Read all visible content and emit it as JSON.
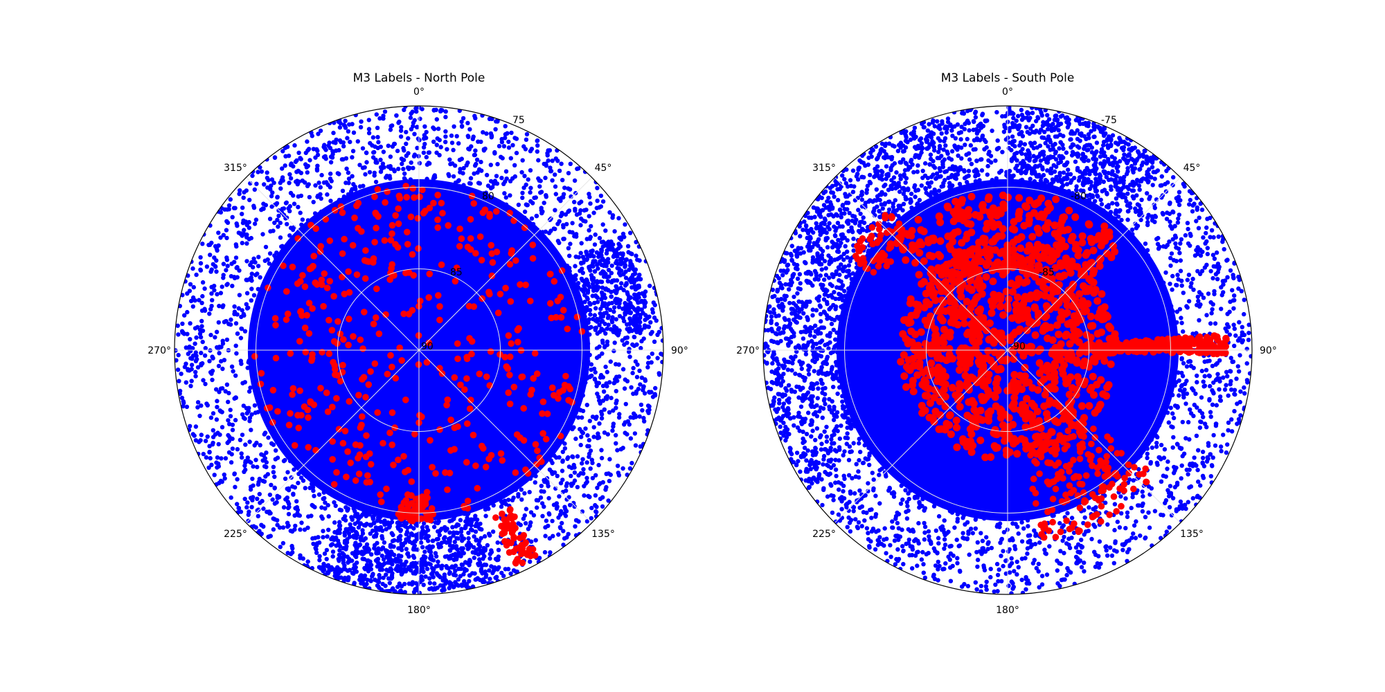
{
  "chart_data": [
    {
      "type": "scatter",
      "projection": "polar",
      "title": "M3 Labels - North Pole",
      "theta_zero_location": "top",
      "theta_direction": "clockwise",
      "angle_tick_labels": [
        "0°",
        "45°",
        "90°",
        "135°",
        "180°",
        "225°",
        "270°",
        "315°"
      ],
      "radial_tick_labels": [
        "75",
        "80",
        "85",
        "90"
      ],
      "rlim": [
        90,
        75
      ],
      "grid": true,
      "series": [
        {
          "color": "#0000ff",
          "marker_size": 3,
          "density": "dense",
          "coverage": "entire disk from latitude 75 to the pole"
        },
        {
          "color": "#ff0000",
          "marker_size": 4.5,
          "density": "sparse",
          "coverage": "clustered mostly between latitude 85 and 90"
        }
      ]
    },
    {
      "type": "scatter",
      "projection": "polar",
      "title": "M3 Labels - South Pole",
      "theta_zero_location": "top",
      "theta_direction": "clockwise",
      "angle_tick_labels": [
        "0°",
        "45°",
        "90°",
        "135°",
        "180°",
        "225°",
        "270°",
        "315°"
      ],
      "radial_tick_labels": [
        "-75",
        "-80",
        "-85",
        "-90"
      ],
      "rlim": [
        -90,
        -75
      ],
      "grid": true,
      "series": [
        {
          "color": "#0000ff",
          "marker_size": 3,
          "density": "dense",
          "coverage": "entire disk from latitude -75 to the pole"
        },
        {
          "color": "#ff0000",
          "marker_size": 4.5,
          "density": "dense",
          "coverage": "large cluster around the pole plus a streak toward 90°"
        }
      ]
    }
  ]
}
